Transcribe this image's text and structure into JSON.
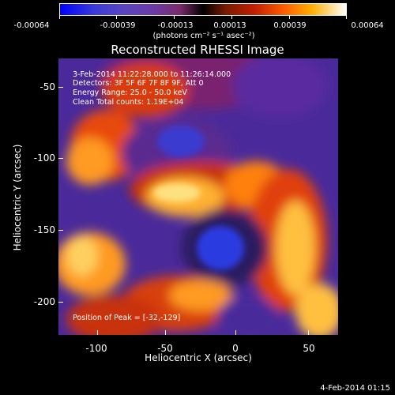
{
  "colorbar": {
    "tick_labels": [
      "-0.00064",
      "-0.00039",
      "-0.00013",
      "0.00013",
      "0.00039",
      "0.00064"
    ],
    "unit_label": "(photons cm⁻² s⁻¹ asec⁻²)"
  },
  "title": "Reconstructed RHESSI Image",
  "annotations": {
    "time_range": "3-Feb-2014 11:22:28.000 to 11:26:14.000",
    "detectors": "Detectors: 3F 5F 6F 7F 8F 9F, Att 0",
    "energy": "Energy Range: 25.0 - 50.0 keV",
    "method": "Clean     Total counts: 1.19E+04",
    "peak": "Position of Peak = [-32,-129]"
  },
  "axes": {
    "xlabel": "Heliocentric X (arcsec)",
    "ylabel": "Heliocentric Y (arcsec)",
    "x_ticks": [
      "-100",
      "-50",
      "0",
      "50"
    ],
    "y_ticks": [
      "-50",
      "-100",
      "-150",
      "-200"
    ]
  },
  "footer_date": "4-Feb-2014 01:15"
}
